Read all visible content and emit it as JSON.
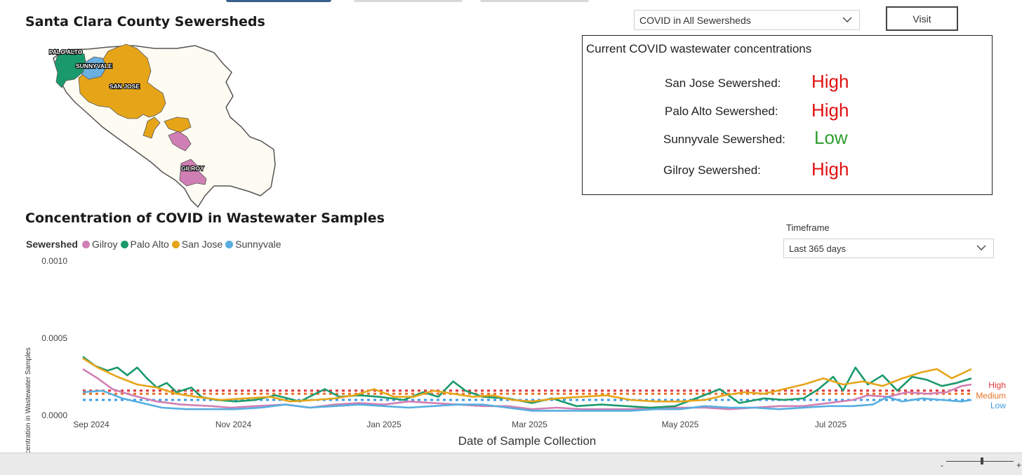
{
  "map": {
    "title": "Santa Clara County Sewersheds",
    "labels": [
      "PALO ALTO",
      "SUNNYVALE",
      "SAN JOSE",
      "GILROY"
    ],
    "colors": {
      "county": "#fdfbf2",
      "palo_alto": "#1a9a6c",
      "sunnyvale": "#6ab0e0",
      "san_jose": "#e6a519",
      "gilroy": "#d07fb4"
    }
  },
  "selector": {
    "value": "COVID in All Sewersheds",
    "icon": "chevron-down-icon"
  },
  "visit_button": {
    "label": "Visit"
  },
  "status_panel": {
    "heading": "Current COVID wastewater concentrations",
    "rows": [
      {
        "label": "San Jose Sewershed:",
        "value": "High",
        "color": "#e01010"
      },
      {
        "label": "Palo Alto Sewershed:",
        "value": "High",
        "color": "#e01010"
      },
      {
        "label": "Sunnyvale Sewershed:",
        "value": "Low",
        "color": "#2e9e2e"
      },
      {
        "label": "Gilroy Sewershed:",
        "value": "High",
        "color": "#e01010"
      }
    ]
  },
  "timeframe": {
    "label": "Timeframe",
    "value": "Last 365 days",
    "icon": "chevron-down-icon"
  },
  "chart_title": "Concentration of COVID in Wastewater Samples",
  "legend": {
    "title": "Sewershed"
  },
  "chart_data": {
    "type": "line",
    "xlabel": "Date of Sample Collection",
    "ylabel": "Concentration in Wastewater Samples",
    "ylim": [
      0,
      0.001
    ],
    "y_ticks": [
      "0.0000",
      "0.0005",
      "0.0010"
    ],
    "x_ticks": [
      "Sep 2024",
      "Nov 2024",
      "Jan 2025",
      "Mar 2025",
      "May 2025",
      "Jul 2025"
    ],
    "x_tick_days": [
      0,
      61,
      122,
      181,
      242,
      303
    ],
    "x_range_days": [
      0,
      360
    ],
    "x_note": "x values are day offsets from Sep 1, 2024",
    "legend_position": "top-left",
    "grid": false,
    "series": [
      {
        "name": "Gilroy",
        "color": "#d07fb4",
        "points": [
          [
            0,
            0.0003
          ],
          [
            6,
            0.00024
          ],
          [
            12,
            0.00017
          ],
          [
            20,
            0.00013
          ],
          [
            30,
            9e-05
          ],
          [
            40,
            7e-05
          ],
          [
            52,
            6e-05
          ],
          [
            60,
            5e-05
          ],
          [
            70,
            6e-05
          ],
          [
            82,
            7e-05
          ],
          [
            92,
            5e-05
          ],
          [
            102,
            7e-05
          ],
          [
            112,
            8e-05
          ],
          [
            122,
            7e-05
          ],
          [
            132,
            9e-05
          ],
          [
            142,
            8e-05
          ],
          [
            152,
            7e-05
          ],
          [
            162,
            6e-05
          ],
          [
            172,
            6e-05
          ],
          [
            182,
            4e-05
          ],
          [
            192,
            5e-05
          ],
          [
            202,
            4e-05
          ],
          [
            212,
            4e-05
          ],
          [
            222,
            4e-05
          ],
          [
            232,
            5e-05
          ],
          [
            242,
            5e-05
          ],
          [
            252,
            5e-05
          ],
          [
            262,
            4e-05
          ],
          [
            272,
            5e-05
          ],
          [
            282,
            6e-05
          ],
          [
            292,
            6e-05
          ],
          [
            302,
            8e-05
          ],
          [
            312,
            0.0001
          ],
          [
            318,
            0.00013
          ],
          [
            326,
            0.00012
          ],
          [
            334,
            0.00015
          ],
          [
            342,
            0.00014
          ],
          [
            350,
            0.00015
          ],
          [
            356,
            0.00019
          ],
          [
            360,
            0.0002
          ]
        ]
      },
      {
        "name": "Palo Alto",
        "color": "#1a9a6c",
        "points": [
          [
            0,
            0.00038
          ],
          [
            5,
            0.00032
          ],
          [
            10,
            0.00029
          ],
          [
            14,
            0.00031
          ],
          [
            18,
            0.00026
          ],
          [
            22,
            0.00031
          ],
          [
            26,
            0.00024
          ],
          [
            30,
            0.00018
          ],
          [
            34,
            0.00021
          ],
          [
            38,
            0.00015
          ],
          [
            44,
            0.00018
          ],
          [
            48,
            0.00012
          ],
          [
            54,
            0.0001
          ],
          [
            62,
            9e-05
          ],
          [
            70,
            0.0001
          ],
          [
            78,
            0.00013
          ],
          [
            88,
            9e-05
          ],
          [
            98,
            0.00017
          ],
          [
            104,
            0.00012
          ],
          [
            112,
            0.00013
          ],
          [
            120,
            0.00012
          ],
          [
            130,
            0.0001
          ],
          [
            138,
            0.00015
          ],
          [
            144,
            0.00012
          ],
          [
            150,
            0.00022
          ],
          [
            155,
            0.00016
          ],
          [
            162,
            0.00012
          ],
          [
            172,
            0.00011
          ],
          [
            182,
            8e-05
          ],
          [
            190,
            0.00011
          ],
          [
            200,
            6e-05
          ],
          [
            210,
            7e-05
          ],
          [
            220,
            6e-05
          ],
          [
            230,
            5e-05
          ],
          [
            240,
            6e-05
          ],
          [
            250,
            0.00012
          ],
          [
            258,
            0.00017
          ],
          [
            266,
            8e-05
          ],
          [
            276,
            0.00011
          ],
          [
            284,
            0.0001
          ],
          [
            292,
            0.00011
          ],
          [
            298,
            0.00017
          ],
          [
            304,
            0.00025
          ],
          [
            308,
            0.00016
          ],
          [
            313,
            0.00031
          ],
          [
            318,
            0.0002
          ],
          [
            324,
            0.00026
          ],
          [
            330,
            0.00016
          ],
          [
            336,
            0.00025
          ],
          [
            342,
            0.00023
          ],
          [
            348,
            0.00019
          ],
          [
            354,
            0.00021
          ],
          [
            360,
            0.00024
          ]
        ]
      },
      {
        "name": "San Jose",
        "color": "#e6a519",
        "points": [
          [
            0,
            0.00037
          ],
          [
            6,
            0.00031
          ],
          [
            14,
            0.00025
          ],
          [
            22,
            0.0002
          ],
          [
            30,
            0.00018
          ],
          [
            38,
            0.00014
          ],
          [
            46,
            0.00012
          ],
          [
            56,
            0.0001
          ],
          [
            66,
            0.00011
          ],
          [
            76,
            0.00012
          ],
          [
            84,
            9e-05
          ],
          [
            94,
            0.0001
          ],
          [
            102,
            0.00011
          ],
          [
            110,
            0.00013
          ],
          [
            118,
            0.00017
          ],
          [
            126,
            0.00012
          ],
          [
            134,
            0.00012
          ],
          [
            142,
            0.00016
          ],
          [
            150,
            0.00014
          ],
          [
            158,
            0.00012
          ],
          [
            166,
            0.00013
          ],
          [
            174,
            0.0001
          ],
          [
            182,
            9e-05
          ],
          [
            192,
            0.00011
          ],
          [
            202,
            0.00012
          ],
          [
            212,
            0.00013
          ],
          [
            222,
            0.0001
          ],
          [
            232,
            9e-05
          ],
          [
            242,
            9e-05
          ],
          [
            252,
            0.0001
          ],
          [
            260,
            0.00013
          ],
          [
            268,
            0.00015
          ],
          [
            276,
            0.00014
          ],
          [
            284,
            0.00017
          ],
          [
            292,
            0.0002
          ],
          [
            300,
            0.00024
          ],
          [
            308,
            0.0002
          ],
          [
            316,
            0.00022
          ],
          [
            324,
            0.00019
          ],
          [
            332,
            0.00024
          ],
          [
            340,
            0.00028
          ],
          [
            346,
            0.0003
          ],
          [
            352,
            0.00024
          ],
          [
            360,
            0.0003
          ]
        ]
      },
      {
        "name": "Sunnyvale",
        "color": "#57aee0",
        "points": [
          [
            0,
            0.00015
          ],
          [
            8,
            0.00016
          ],
          [
            16,
            0.00011
          ],
          [
            24,
            8e-05
          ],
          [
            32,
            5e-05
          ],
          [
            42,
            4e-05
          ],
          [
            52,
            4e-05
          ],
          [
            62,
            4e-05
          ],
          [
            72,
            5e-05
          ],
          [
            82,
            7e-05
          ],
          [
            92,
            5e-05
          ],
          [
            102,
            6e-05
          ],
          [
            112,
            7e-05
          ],
          [
            122,
            6e-05
          ],
          [
            132,
            5e-05
          ],
          [
            142,
            6e-05
          ],
          [
            152,
            7e-05
          ],
          [
            162,
            7e-05
          ],
          [
            172,
            5e-05
          ],
          [
            182,
            3e-05
          ],
          [
            192,
            3e-05
          ],
          [
            202,
            3e-05
          ],
          [
            212,
            3e-05
          ],
          [
            222,
            3e-05
          ],
          [
            232,
            4e-05
          ],
          [
            242,
            4e-05
          ],
          [
            252,
            6e-05
          ],
          [
            262,
            5e-05
          ],
          [
            272,
            5e-05
          ],
          [
            282,
            4e-05
          ],
          [
            292,
            5e-05
          ],
          [
            302,
            6e-05
          ],
          [
            312,
            6e-05
          ],
          [
            320,
            7e-05
          ],
          [
            326,
            0.00012
          ],
          [
            332,
            9e-05
          ],
          [
            340,
            0.00011
          ],
          [
            348,
            0.0001
          ],
          [
            356,
            9e-05
          ],
          [
            360,
            0.0001
          ]
        ]
      }
    ],
    "thresholds": [
      {
        "name": "High",
        "value": 0.00016,
        "color": "#e0343a"
      },
      {
        "name": "Medium",
        "value": 0.00014,
        "color": "#e8722a"
      },
      {
        "name": "Low",
        "value": 0.0001,
        "color": "#3e9be0"
      }
    ]
  },
  "zoom": {
    "minus": "-",
    "plus": "+"
  }
}
